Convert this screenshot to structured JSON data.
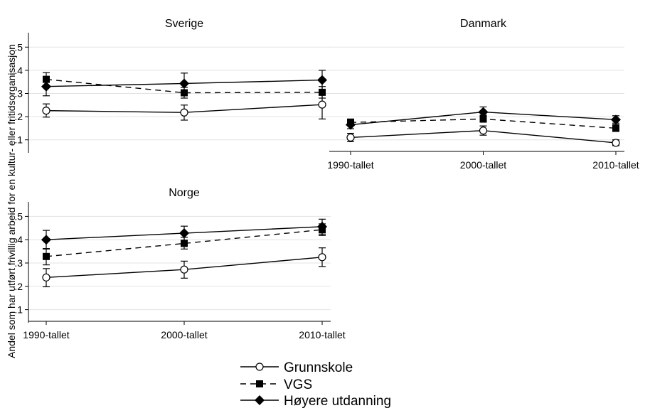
{
  "chart_data": {
    "type": "line",
    "ylabel": "Andel som har utført frivillig arbeid for en kultur- eller fritidsorganisasjon",
    "categories": [
      "1990-tallet",
      "2000-tallet",
      "2010-tallet"
    ],
    "ylim": [
      0.05,
      0.55
    ],
    "yticks": [
      0.1,
      0.2,
      0.3,
      0.4,
      0.5
    ],
    "ytick_labels": [
      ".1",
      ".2",
      ".3",
      ".4",
      ".5"
    ],
    "grid": true,
    "legend": {
      "position": "bottom-center",
      "entries": [
        {
          "label": "Grunnskole",
          "marker": "hollow-circle",
          "line": "solid"
        },
        {
          "label": "VGS",
          "marker": "filled-square",
          "line": "dashed"
        },
        {
          "label": "Høyere utdanning",
          "marker": "filled-diamond",
          "line": "solid"
        }
      ]
    },
    "panels": [
      {
        "title": "Sverige",
        "show_x_ticklabels": false,
        "series": [
          {
            "name": "Grunnskole",
            "values": [
              0.226,
              0.218,
              0.252
            ],
            "ci_low": [
              0.198,
              0.185,
              0.19
            ],
            "ci_high": [
              0.255,
              0.25,
              0.312
            ]
          },
          {
            "name": "VGS",
            "values": [
              0.361,
              0.303,
              0.305
            ],
            "ci_low": [
              0.335,
              0.28,
              0.28
            ],
            "ci_high": [
              0.39,
              0.326,
              0.33
            ]
          },
          {
            "name": "Høyere utdanning",
            "values": [
              0.33,
              0.343,
              0.358
            ],
            "ci_low": [
              0.29,
              0.302,
              0.318
            ],
            "ci_high": [
              0.37,
              0.388,
              0.4
            ]
          }
        ]
      },
      {
        "title": "Danmark",
        "show_x_ticklabels": true,
        "series": [
          {
            "name": "Grunnskole",
            "values": [
              0.11,
              0.14,
              0.087
            ],
            "ci_low": [
              0.092,
              0.12,
              0.075
            ],
            "ci_high": [
              0.128,
              0.16,
              0.1
            ]
          },
          {
            "name": "VGS",
            "values": [
              0.175,
              0.19,
              0.15
            ],
            "ci_low": [
              0.16,
              0.176,
              0.136
            ],
            "ci_high": [
              0.19,
              0.206,
              0.166
            ]
          },
          {
            "name": "Høyere utdanning",
            "values": [
              0.165,
              0.22,
              0.187
            ],
            "ci_low": [
              0.148,
              0.2,
              0.172
            ],
            "ci_high": [
              0.182,
              0.242,
              0.204
            ]
          }
        ]
      },
      {
        "title": "Norge",
        "show_x_ticklabels": true,
        "series": [
          {
            "name": "Grunnskole",
            "values": [
              0.238,
              0.272,
              0.325
            ],
            "ci_low": [
              0.198,
              0.235,
              0.285
            ],
            "ci_high": [
              0.276,
              0.308,
              0.365
            ]
          },
          {
            "name": "VGS",
            "values": [
              0.328,
              0.384,
              0.443
            ],
            "ci_low": [
              0.292,
              0.36,
              0.418
            ],
            "ci_high": [
              0.362,
              0.41,
              0.468
            ]
          },
          {
            "name": "Høyere utdanning",
            "values": [
              0.4,
              0.428,
              0.456
            ],
            "ci_low": [
              0.36,
              0.398,
              0.424
            ],
            "ci_high": [
              0.44,
              0.458,
              0.488
            ]
          }
        ]
      }
    ]
  }
}
